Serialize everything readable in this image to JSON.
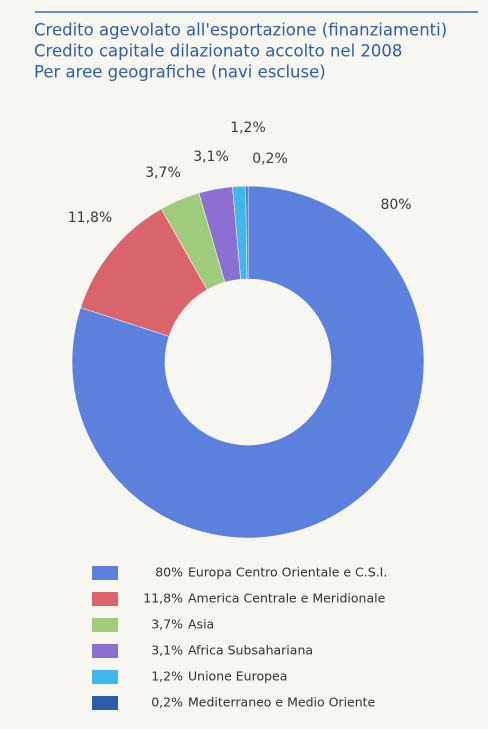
{
  "chart_data": {
    "type": "donut",
    "title": [
      "Credito agevolato all'esportazione (finanziamenti)",
      "Credito capitale dilazionato accolto nel 2008",
      "Per aree geografiche (navi escluse)"
    ],
    "categories": [
      "Europa Centro Orientale e C.S.I.",
      "America Centrale e Meridionale",
      "Asia",
      "Africa Subsahariana",
      "Unione Europea",
      "Mediterraneo e Medio Oriente"
    ],
    "values": [
      80,
      11.8,
      3.7,
      3.1,
      1.2,
      0.2
    ],
    "value_labels": [
      "80%",
      "11,8%",
      "3,7%",
      "3,1%",
      "1,2%",
      "0,2%"
    ],
    "colors": [
      "#5b80de",
      "#d9646b",
      "#9fcd7c",
      "#8c6fd2",
      "#3cb8ec",
      "#2c5cab"
    ],
    "legend": "bottom"
  }
}
